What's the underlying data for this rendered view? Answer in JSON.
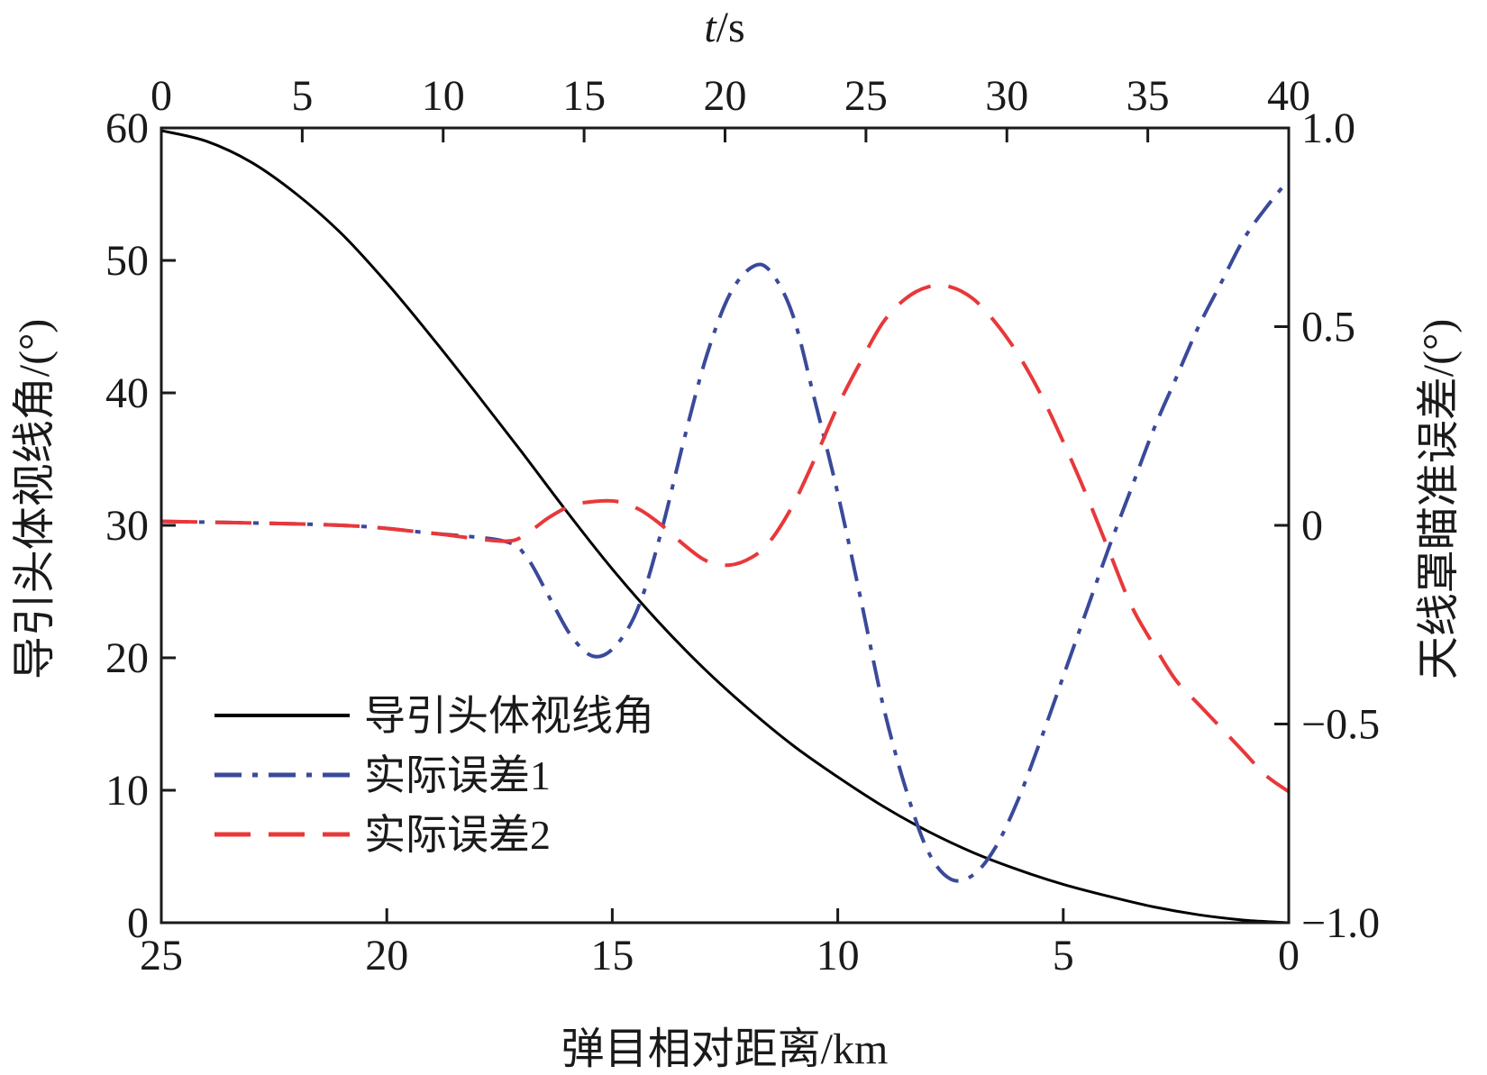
{
  "chart_data": {
    "type": "line",
    "x_bottom": {
      "label": "弹目相对距离/km",
      "range": [
        25,
        0
      ],
      "ticks": [
        "25",
        "20",
        "15",
        "10",
        "5",
        "0"
      ]
    },
    "x_top": {
      "label_italic": "t",
      "label_rest": "/s",
      "range": [
        0,
        40
      ],
      "ticks": [
        "0",
        "5",
        "10",
        "15",
        "20",
        "25",
        "30",
        "35",
        "40"
      ]
    },
    "y_left": {
      "label": "导引头体视线角/(°)",
      "range": [
        0,
        60
      ],
      "ticks": [
        "0",
        "10",
        "20",
        "30",
        "40",
        "50",
        "60"
      ]
    },
    "y_right": {
      "label": "天线罩瞄准误差/(°)",
      "range": [
        -1.0,
        1.0
      ],
      "ticks": [
        "−1.0",
        "−0.5",
        "0",
        "0.5",
        "1.0"
      ]
    },
    "grid": false,
    "legend_position": "lower-left",
    "series": [
      {
        "name": "导引头体视线角",
        "axis": "left",
        "color": "#000000",
        "style": "solid",
        "x_km": [
          25,
          24,
          23,
          22,
          21,
          20,
          19,
          18,
          17,
          16,
          15,
          14,
          13,
          12,
          11,
          10,
          9,
          8,
          7,
          6,
          5,
          4,
          3,
          2,
          1,
          0
        ],
        "y": [
          59.8,
          59.0,
          57.4,
          55.0,
          52.0,
          48.3,
          44.2,
          39.9,
          35.5,
          31.0,
          26.7,
          22.8,
          19.3,
          16.2,
          13.4,
          11.0,
          8.8,
          6.9,
          5.3,
          4.0,
          2.9,
          2.0,
          1.2,
          0.6,
          0.2,
          0.0
        ]
      },
      {
        "name": "实际误差1",
        "axis": "right",
        "color": "#3a4a9a",
        "style": "dashdot",
        "x_km": [
          25,
          21,
          19,
          17.4,
          16.9,
          16.4,
          15.9,
          15.4,
          14.9,
          14.4,
          13.9,
          13.4,
          12.9,
          12.4,
          11.9,
          11.5,
          11.0,
          10.5,
          10.0,
          9.5,
          9.0,
          8.5,
          8.0,
          7.5,
          7.0,
          6.5,
          6.0,
          5.5,
          5.0,
          4.5,
          4.0,
          3.5,
          3.0,
          2.5,
          2.0,
          1.5,
          1.0,
          0.5,
          0.0
        ],
        "y": [
          0.01,
          0.0,
          -0.02,
          -0.04,
          -0.08,
          -0.18,
          -0.28,
          -0.33,
          -0.3,
          -0.2,
          -0.01,
          0.22,
          0.43,
          0.58,
          0.65,
          0.64,
          0.53,
          0.31,
          0.08,
          -0.18,
          -0.45,
          -0.66,
          -0.82,
          -0.89,
          -0.88,
          -0.81,
          -0.69,
          -0.54,
          -0.38,
          -0.22,
          -0.06,
          0.09,
          0.24,
          0.37,
          0.5,
          0.61,
          0.72,
          0.8,
          0.87
        ]
      },
      {
        "name": "实际误差2",
        "axis": "right",
        "color": "#e8383a",
        "style": "dashed",
        "x_km": [
          25,
          21,
          19,
          17.4,
          16.9,
          16.4,
          15.9,
          15.4,
          14.9,
          14.4,
          13.9,
          13.4,
          12.9,
          12.4,
          11.9,
          11.5,
          11.0,
          10.5,
          10.0,
          9.5,
          9.0,
          8.5,
          8.0,
          7.5,
          7.0,
          6.5,
          6.0,
          5.5,
          5.0,
          4.5,
          4.0,
          3.5,
          3.0,
          2.5,
          2.0,
          1.5,
          1.0,
          0.5,
          0.0
        ],
        "y": [
          0.01,
          0.0,
          -0.02,
          -0.04,
          -0.02,
          0.02,
          0.05,
          0.06,
          0.06,
          0.04,
          0.0,
          -0.05,
          -0.09,
          -0.1,
          -0.08,
          -0.04,
          0.05,
          0.17,
          0.3,
          0.41,
          0.51,
          0.57,
          0.6,
          0.6,
          0.57,
          0.51,
          0.43,
          0.33,
          0.21,
          0.08,
          -0.06,
          -0.2,
          -0.3,
          -0.39,
          -0.45,
          -0.51,
          -0.57,
          -0.63,
          -0.67
        ]
      }
    ]
  }
}
